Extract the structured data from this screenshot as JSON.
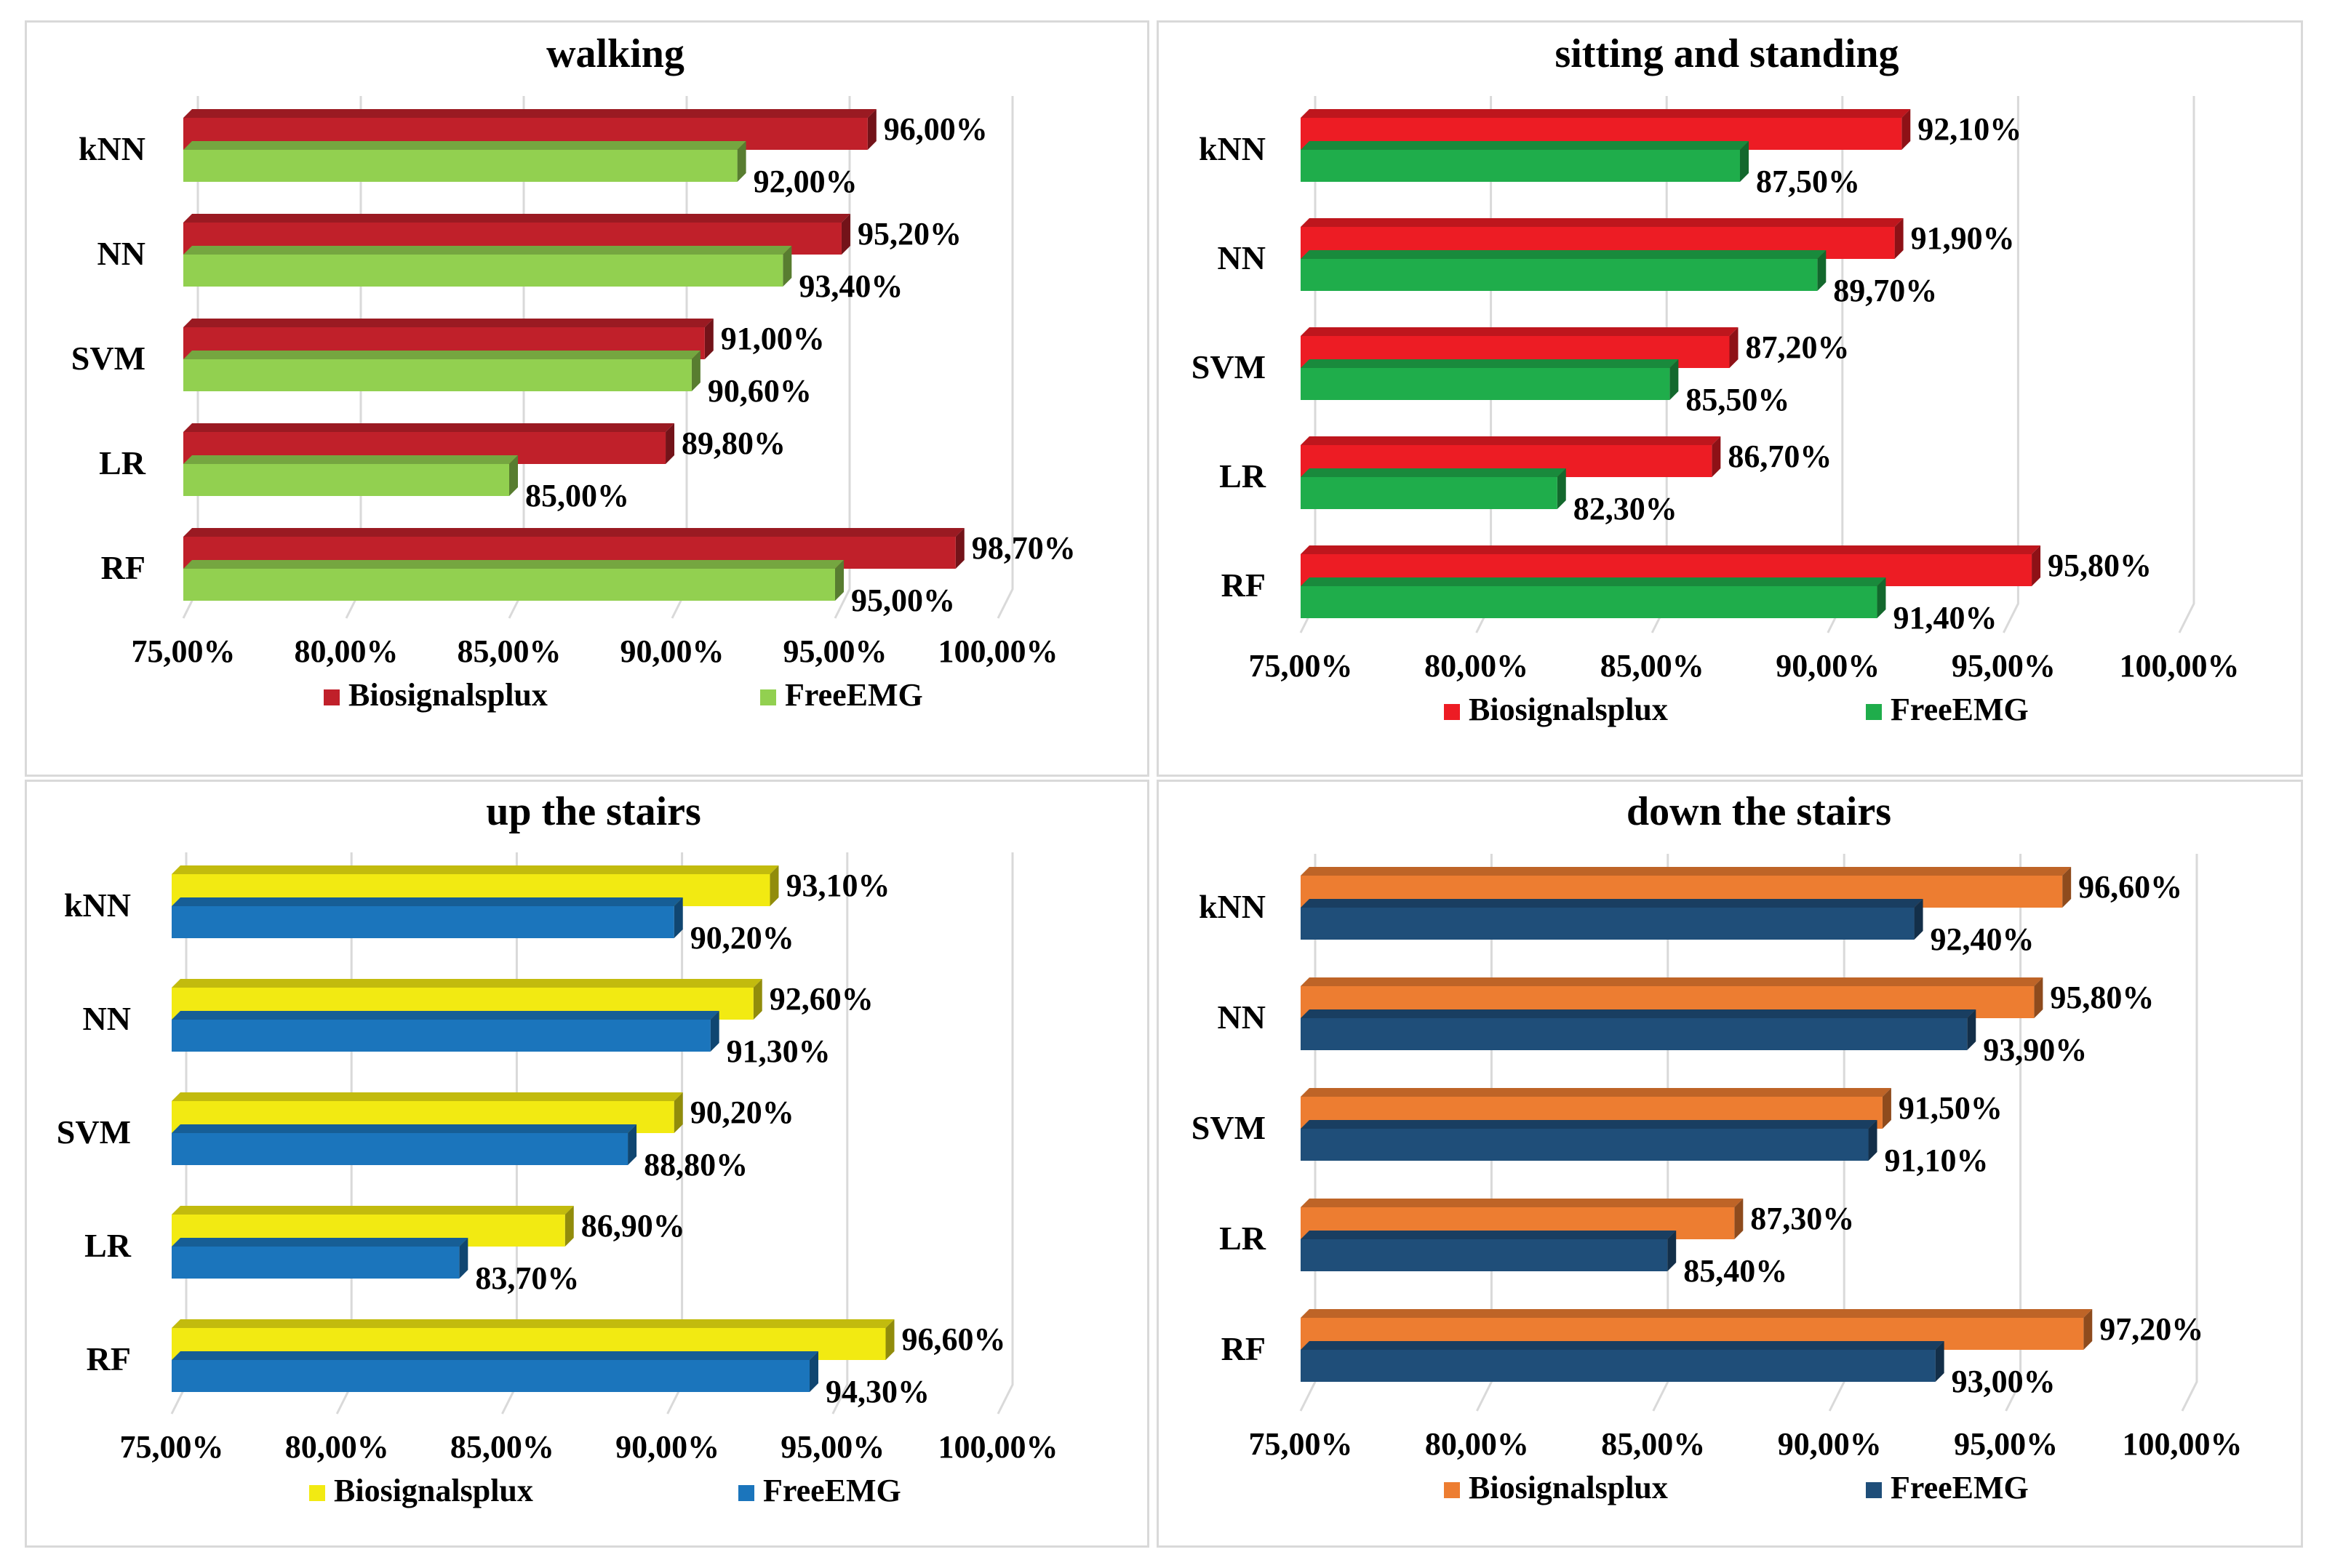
{
  "chart_data": [
    {
      "type": "bar",
      "orientation": "horizontal",
      "title": "walking",
      "categories": [
        "kNN",
        "NN",
        "SVM",
        "LR",
        "RF"
      ],
      "series": [
        {
          "name": "Biosignalsplux",
          "values": [
            96.0,
            95.2,
            91.0,
            89.8,
            98.7
          ],
          "labels": [
            "96,00%",
            "95,20%",
            "91,00%",
            "89,80%",
            "98,70%"
          ],
          "color": "#c0202a"
        },
        {
          "name": "FreeEMG",
          "values": [
            92.0,
            93.4,
            90.6,
            85.0,
            95.0
          ],
          "labels": [
            "92,00%",
            "93,40%",
            "90,60%",
            "85,00%",
            "95,00%"
          ],
          "color": "#92d050"
        }
      ],
      "xlim": [
        75,
        100
      ],
      "ticks": [
        "75,00%",
        "80,00%",
        "85,00%",
        "90,00%",
        "95,00%",
        "100,00%"
      ],
      "legend": "bottom",
      "grid": true
    },
    {
      "type": "bar",
      "orientation": "horizontal",
      "title": "sitting and standing",
      "categories": [
        "kNN",
        "NN",
        "SVM",
        "LR",
        "RF"
      ],
      "series": [
        {
          "name": "Biosignalsplux",
          "values": [
            92.1,
            91.9,
            87.2,
            86.7,
            95.8
          ],
          "labels": [
            "92,10%",
            "91,90%",
            "87,20%",
            "86,70%",
            "95,80%"
          ],
          "color": "#ed1c24"
        },
        {
          "name": "FreeEMG",
          "values": [
            87.5,
            89.7,
            85.5,
            82.3,
            91.4
          ],
          "labels": [
            "87,50%",
            "89,70%",
            "85,50%",
            "82,30%",
            "91,40%"
          ],
          "color": "#1fad4b"
        }
      ],
      "xlim": [
        75,
        100
      ],
      "ticks": [
        "75,00%",
        "80,00%",
        "85,00%",
        "90,00%",
        "95,00%",
        "100,00%"
      ],
      "legend": "bottom",
      "grid": true
    },
    {
      "type": "bar",
      "orientation": "horizontal",
      "title": "up the stairs",
      "categories": [
        "kNN",
        "NN",
        "SVM",
        "LR",
        "RF"
      ],
      "series": [
        {
          "name": "Biosignalsplux",
          "values": [
            93.1,
            92.6,
            90.2,
            86.9,
            96.6
          ],
          "labels": [
            "93,10%",
            "92,60%",
            "90,20%",
            "86,90%",
            "96,60%"
          ],
          "color": "#f2ea12"
        },
        {
          "name": "FreeEMG",
          "values": [
            90.2,
            91.3,
            88.8,
            83.7,
            94.3
          ],
          "labels": [
            "90,20%",
            "91,30%",
            "88,80%",
            "83,70%",
            "94,30%"
          ],
          "color": "#1b75bc"
        }
      ],
      "xlim": [
        75,
        100
      ],
      "ticks": [
        "75,00%",
        "80,00%",
        "85,00%",
        "90,00%",
        "95,00%",
        "100,00%"
      ],
      "legend": "bottom",
      "grid": true
    },
    {
      "type": "bar",
      "orientation": "horizontal",
      "title": "down the stairs",
      "categories": [
        "kNN",
        "NN",
        "SVM",
        "LR",
        "RF"
      ],
      "series": [
        {
          "name": "Biosignalsplux",
          "values": [
            96.6,
            95.8,
            91.5,
            87.3,
            97.2
          ],
          "labels": [
            "96,60%",
            "95,80%",
            "91,50%",
            "87,30%",
            "97,20%"
          ],
          "color": "#ed7d31"
        },
        {
          "name": "FreeEMG",
          "values": [
            92.4,
            93.9,
            91.1,
            85.4,
            93.0
          ],
          "labels": [
            "92,40%",
            "93,90%",
            "91,10%",
            "85,40%",
            "93,00%"
          ],
          "color": "#1f4e79"
        }
      ],
      "xlim": [
        75,
        100
      ],
      "ticks": [
        "75,00%",
        "80,00%",
        "85,00%",
        "90,00%",
        "95,00%",
        "100,00%"
      ],
      "legend": "bottom",
      "grid": true
    }
  ]
}
